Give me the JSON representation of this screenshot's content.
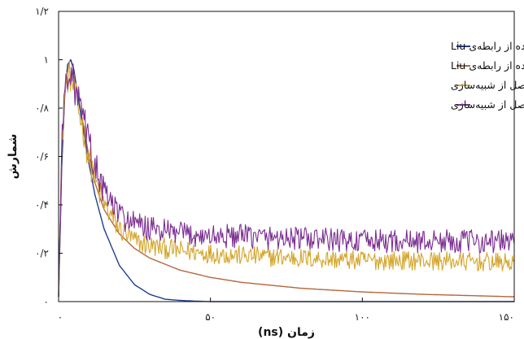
{
  "chart_data": {
    "type": "line",
    "title": "",
    "xlabel": "زمان (ns)",
    "ylabel": "شمارش",
    "xlim": [
      0,
      150
    ],
    "ylim": [
      0,
      1.2
    ],
    "x_ticks": [
      {
        "value": 0,
        "label": "۰"
      },
      {
        "value": 50,
        "label": "۵۰"
      },
      {
        "value": 100,
        "label": "۱۰۰"
      },
      {
        "value": 150,
        "label": "۱۵۰"
      }
    ],
    "y_ticks": [
      {
        "value": 0,
        "label": "۰"
      },
      {
        "value": 0.2,
        "label": "۰/۲"
      },
      {
        "value": 0.4,
        "label": "۰/۴"
      },
      {
        "value": 0.6,
        "label": "۰/۶"
      },
      {
        "value": 0.8,
        "label": "۰/۸"
      },
      {
        "value": 1.0,
        "label": "۱"
      },
      {
        "value": 1.2,
        "label": "۱/۲"
      }
    ],
    "grid": false,
    "legend_position": "top-right",
    "series": [
      {
        "name": "طیف گامای بدست آمده از رابطه‌ی Liu",
        "color": "#1f3f8f",
        "x": [
          0,
          1,
          2,
          3,
          4,
          5,
          6,
          8,
          10,
          12,
          15,
          20,
          25,
          30,
          35,
          40,
          45,
          50,
          60,
          150
        ],
        "y": [
          0.02,
          0.55,
          0.85,
          0.98,
          1.0,
          0.96,
          0.88,
          0.72,
          0.57,
          0.44,
          0.3,
          0.15,
          0.07,
          0.03,
          0.01,
          0.005,
          0.002,
          0.0,
          0.0,
          0.0
        ]
      },
      {
        "name": "طیف نوترون بدست آمده از رابطه‌ی Liu",
        "color": "#b5663a",
        "x": [
          0,
          1,
          2,
          3,
          4,
          5,
          6,
          8,
          10,
          12,
          15,
          20,
          25,
          30,
          40,
          50,
          60,
          80,
          100,
          120,
          150
        ],
        "y": [
          0.02,
          0.55,
          0.85,
          0.98,
          1.0,
          0.96,
          0.88,
          0.74,
          0.6,
          0.49,
          0.38,
          0.28,
          0.22,
          0.18,
          0.13,
          0.1,
          0.08,
          0.055,
          0.04,
          0.03,
          0.02
        ]
      },
      {
        "name": "طیف گامای حاصل از شبیه‌سازی",
        "color": "#d4a52a",
        "x": [
          0,
          1,
          2,
          3,
          4,
          5,
          6,
          8,
          10,
          12,
          15,
          20,
          25,
          30,
          40,
          50,
          60,
          80,
          100,
          120,
          150
        ],
        "y": [
          0.05,
          0.6,
          0.85,
          0.93,
          0.93,
          0.88,
          0.82,
          0.72,
          0.6,
          0.5,
          0.4,
          0.3,
          0.25,
          0.23,
          0.21,
          0.2,
          0.19,
          0.18,
          0.17,
          0.17,
          0.16
        ]
      },
      {
        "name": "طیف نوترون حاصل از شبیه‌سازی",
        "color": "#7b2d91",
        "x": [
          0,
          1,
          2,
          3,
          4,
          5,
          6,
          8,
          10,
          12,
          15,
          20,
          25,
          30,
          40,
          50,
          60,
          80,
          100,
          120,
          150
        ],
        "y": [
          0.05,
          0.62,
          0.87,
          0.95,
          0.95,
          0.9,
          0.85,
          0.76,
          0.65,
          0.56,
          0.45,
          0.36,
          0.32,
          0.3,
          0.28,
          0.27,
          0.27,
          0.26,
          0.25,
          0.25,
          0.25
        ]
      }
    ]
  }
}
